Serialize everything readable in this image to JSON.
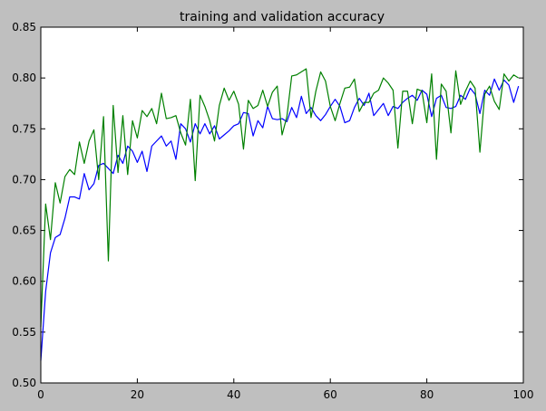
{
  "chart_data": {
    "type": "line",
    "title": "training and validation accuracy",
    "xlabel": "",
    "ylabel": "",
    "xlim": [
      0,
      100
    ],
    "ylim": [
      0.5,
      0.85
    ],
    "xticks": [
      0,
      20,
      40,
      60,
      80,
      100
    ],
    "yticks": [
      0.5,
      0.55,
      0.6,
      0.65,
      0.7,
      0.75,
      0.8,
      0.85
    ],
    "xtick_labels": [
      "0",
      "20",
      "40",
      "60",
      "80",
      "100"
    ],
    "ytick_labels": [
      "0.50",
      "0.55",
      "0.60",
      "0.65",
      "0.70",
      "0.75",
      "0.80",
      "0.85"
    ],
    "grid": false,
    "legend": null,
    "series": [
      {
        "color": "#0000ff",
        "x": [
          0,
          1,
          2,
          3,
          4,
          5,
          6,
          7,
          8,
          9,
          10,
          11,
          12,
          13,
          14,
          15,
          16,
          17,
          18,
          19,
          20,
          21,
          22,
          23,
          24,
          25,
          26,
          27,
          28,
          29,
          30,
          31,
          32,
          33,
          34,
          35,
          36,
          37,
          38,
          39,
          40,
          41,
          42,
          43,
          44,
          45,
          46,
          47,
          48,
          49,
          50,
          51,
          52,
          53,
          54,
          55,
          56,
          57,
          58,
          59,
          60,
          61,
          62,
          63,
          64,
          65,
          66,
          67,
          68,
          69,
          70,
          71,
          72,
          73,
          74,
          75,
          76,
          77,
          78,
          79,
          80,
          81,
          82,
          83,
          84,
          85,
          86,
          87,
          88,
          89,
          90,
          91,
          92,
          93,
          94,
          95,
          96,
          97,
          98,
          99
        ],
        "values": [
          0.522,
          0.59,
          0.628,
          0.643,
          0.646,
          0.662,
          0.683,
          0.683,
          0.681,
          0.706,
          0.69,
          0.696,
          0.714,
          0.716,
          0.711,
          0.706,
          0.724,
          0.716,
          0.733,
          0.728,
          0.717,
          0.728,
          0.708,
          0.733,
          0.738,
          0.743,
          0.733,
          0.738,
          0.72,
          0.755,
          0.75,
          0.737,
          0.755,
          0.745,
          0.755,
          0.745,
          0.753,
          0.74,
          0.744,
          0.748,
          0.753,
          0.755,
          0.766,
          0.765,
          0.743,
          0.758,
          0.751,
          0.772,
          0.76,
          0.759,
          0.76,
          0.757,
          0.771,
          0.761,
          0.782,
          0.765,
          0.771,
          0.763,
          0.758,
          0.764,
          0.772,
          0.779,
          0.772,
          0.756,
          0.758,
          0.771,
          0.78,
          0.773,
          0.785,
          0.763,
          0.769,
          0.775,
          0.763,
          0.772,
          0.77,
          0.776,
          0.78,
          0.783,
          0.778,
          0.788,
          0.784,
          0.762,
          0.78,
          0.783,
          0.771,
          0.77,
          0.772,
          0.783,
          0.779,
          0.79,
          0.784,
          0.765,
          0.788,
          0.783,
          0.799,
          0.788,
          0.798,
          0.793,
          0.776,
          0.792
        ]
      },
      {
        "color": "#008000",
        "x": [
          0,
          1,
          2,
          3,
          4,
          5,
          6,
          7,
          8,
          9,
          10,
          11,
          12,
          13,
          14,
          15,
          16,
          17,
          18,
          19,
          20,
          21,
          22,
          23,
          24,
          25,
          26,
          27,
          28,
          29,
          30,
          31,
          32,
          33,
          34,
          35,
          36,
          37,
          38,
          39,
          40,
          41,
          42,
          43,
          44,
          45,
          46,
          47,
          48,
          49,
          50,
          51,
          52,
          53,
          54,
          55,
          56,
          57,
          58,
          59,
          60,
          61,
          62,
          63,
          64,
          65,
          66,
          67,
          68,
          69,
          70,
          71,
          72,
          73,
          74,
          75,
          76,
          77,
          78,
          79,
          80,
          81,
          82,
          83,
          84,
          85,
          86,
          87,
          88,
          89,
          90,
          91,
          92,
          93,
          94,
          95,
          96,
          97,
          98,
          99
        ],
        "values": [
          0.555,
          0.676,
          0.641,
          0.697,
          0.677,
          0.703,
          0.71,
          0.705,
          0.737,
          0.716,
          0.738,
          0.749,
          0.7,
          0.762,
          0.62,
          0.773,
          0.707,
          0.763,
          0.705,
          0.758,
          0.741,
          0.768,
          0.762,
          0.77,
          0.755,
          0.785,
          0.76,
          0.761,
          0.763,
          0.746,
          0.734,
          0.779,
          0.699,
          0.783,
          0.772,
          0.758,
          0.738,
          0.773,
          0.79,
          0.778,
          0.787,
          0.774,
          0.73,
          0.778,
          0.77,
          0.773,
          0.788,
          0.772,
          0.786,
          0.792,
          0.744,
          0.762,
          0.802,
          0.803,
          0.806,
          0.809,
          0.761,
          0.787,
          0.806,
          0.797,
          0.772,
          0.758,
          0.775,
          0.79,
          0.791,
          0.799,
          0.767,
          0.776,
          0.776,
          0.785,
          0.788,
          0.8,
          0.795,
          0.788,
          0.731,
          0.787,
          0.787,
          0.755,
          0.789,
          0.787,
          0.756,
          0.804,
          0.72,
          0.794,
          0.787,
          0.746,
          0.807,
          0.774,
          0.787,
          0.797,
          0.79,
          0.727,
          0.784,
          0.792,
          0.777,
          0.769,
          0.804,
          0.797,
          0.803,
          0.8
        ]
      }
    ]
  }
}
